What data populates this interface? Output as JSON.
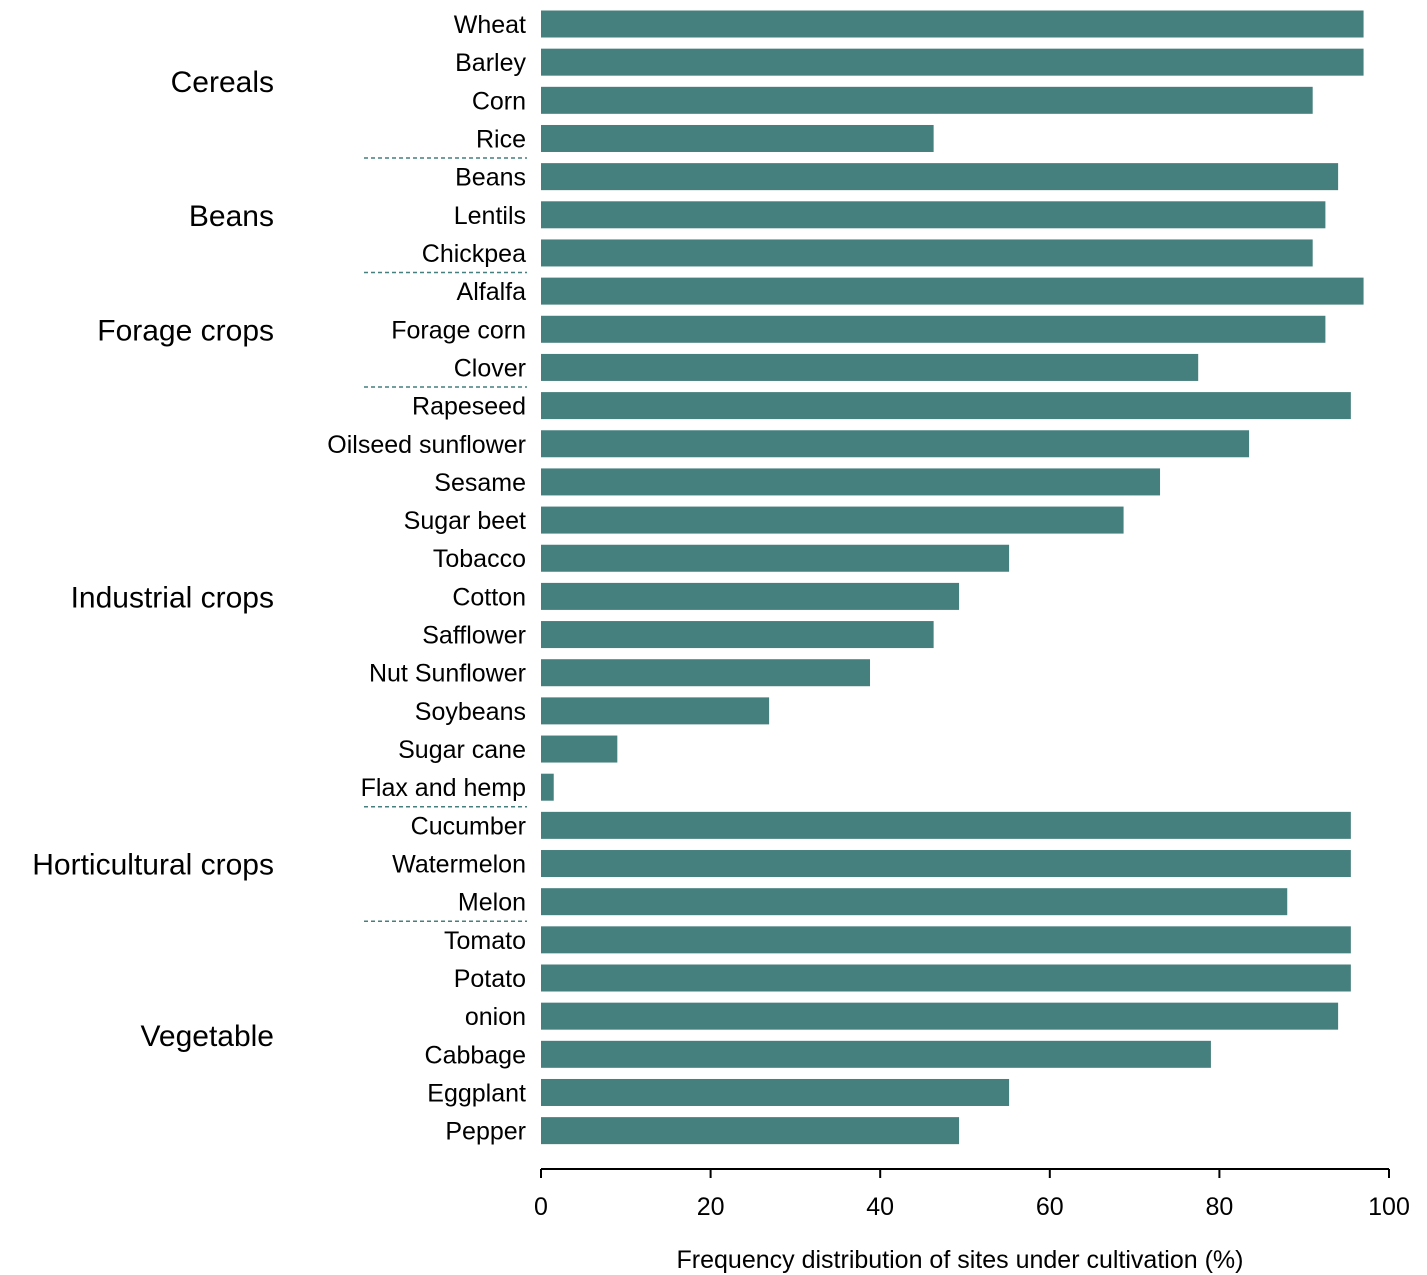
{
  "chart_data": {
    "type": "bar",
    "orientation": "horizontal",
    "title": "",
    "xlabel": "Frequency distribution of sites under cultivation (%)",
    "ylabel": "",
    "xlim": [
      0,
      100
    ],
    "xticks": [
      0,
      20,
      40,
      60,
      80,
      100
    ],
    "grid": false,
    "bar_color": "#457f7e",
    "separator_color": "#457f7e",
    "groups": [
      {
        "name": "Cereals",
        "categories": [
          "Wheat",
          "Barley",
          "Corn",
          "Rice"
        ],
        "values": [
          97,
          97,
          91,
          46.3
        ]
      },
      {
        "name": "Beans",
        "categories": [
          "Beans",
          "Lentils",
          "Chickpea"
        ],
        "values": [
          94,
          92.5,
          91
        ]
      },
      {
        "name": "Forage crops",
        "categories": [
          "Alfalfa",
          "Forage corn",
          "Clover"
        ],
        "values": [
          97,
          92.5,
          77.5
        ]
      },
      {
        "name": "Industrial crops",
        "categories": [
          "Rapeseed",
          "Oilseed sunflower",
          "Sesame",
          "Sugar beet",
          "Tobacco",
          "Cotton",
          "Safflower",
          "Nut Sunflower",
          "Soybeans",
          "Sugar cane",
          "Flax and hemp"
        ],
        "values": [
          95.5,
          83.5,
          73,
          68.7,
          55.2,
          49.3,
          46.3,
          38.8,
          26.9,
          9,
          1.5
        ]
      },
      {
        "name": "Horticultural crops",
        "categories": [
          "Cucumber",
          "Watermelon",
          "Melon"
        ],
        "values": [
          95.5,
          95.5,
          88
        ]
      },
      {
        "name": "Vegetable",
        "categories": [
          "Tomato",
          "Potato",
          "onion",
          "Cabbage",
          "Eggplant",
          "Pepper"
        ],
        "values": [
          95.5,
          95.5,
          94,
          79,
          55.2,
          49.3
        ]
      }
    ]
  }
}
